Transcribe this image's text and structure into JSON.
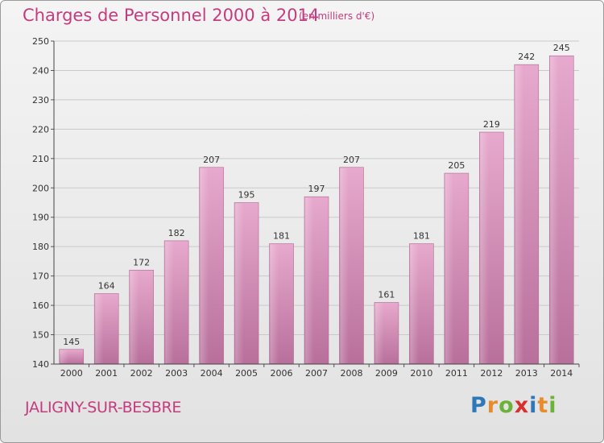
{
  "header": {
    "title": "Charges de Personnel 2000 à 2014",
    "subtitle": "(en milliers d'€)"
  },
  "footer": {
    "commune": "JALIGNY-SUR-BESBRE",
    "logo_letters": [
      {
        "ch": "P",
        "color": "#2f78b7"
      },
      {
        "ch": "r",
        "color": "#e98b2a"
      },
      {
        "ch": "o",
        "color": "#6bb238"
      },
      {
        "ch": "x",
        "color": "#d7312e"
      },
      {
        "ch": "i",
        "color": "#2f78b7"
      },
      {
        "ch": "t",
        "color": "#e98b2a"
      },
      {
        "ch": "i",
        "color": "#6bb238"
      }
    ]
  },
  "chart_data": {
    "type": "bar",
    "title": "Charges de Personnel 2000 à 2014",
    "subtitle": "(en milliers d'€)",
    "xlabel": "",
    "ylabel": "",
    "categories": [
      "2000",
      "2001",
      "2002",
      "2003",
      "2004",
      "2005",
      "2006",
      "2007",
      "2008",
      "2009",
      "2010",
      "2011",
      "2012",
      "2013",
      "2014"
    ],
    "values": [
      145,
      164,
      172,
      182,
      207,
      195,
      181,
      197,
      207,
      161,
      181,
      205,
      219,
      242,
      245
    ],
    "ylim": [
      140,
      250
    ],
    "yticks": [
      140,
      150,
      160,
      170,
      180,
      190,
      200,
      210,
      220,
      230,
      240,
      250
    ],
    "grid": true,
    "bar_color": "#c8669e"
  }
}
